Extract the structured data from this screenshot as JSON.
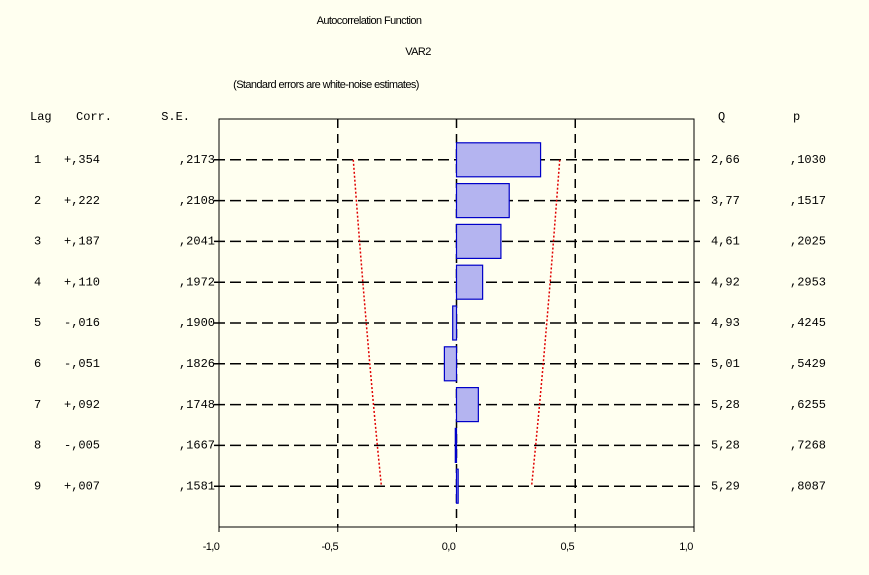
{
  "chart_data": {
    "type": "bar",
    "title": "Autocorrelation Function",
    "subtitle": "VAR2",
    "note": "(Standard errors are white-noise estimates)",
    "columns": {
      "lag": "Lag",
      "corr": "Corr.",
      "se": "S.E.",
      "q": "Q",
      "p": "p"
    },
    "categories": [
      "1",
      "2",
      "3",
      "4",
      "5",
      "6",
      "7",
      "8",
      "9"
    ],
    "values": [
      0.354,
      0.222,
      0.187,
      0.11,
      -0.016,
      -0.051,
      0.092,
      -0.005,
      0.007
    ],
    "value_labels": [
      "+,354",
      "+,222",
      "+,187",
      "+,110",
      "-,016",
      "-,051",
      "+,092",
      "-,005",
      "+,007"
    ],
    "se": [
      0.2173,
      0.2108,
      0.2041,
      0.1972,
      0.19,
      0.1826,
      0.1748,
      0.1667,
      0.1581
    ],
    "se_labels": [
      ",2173",
      ",2108",
      ",2041",
      ",1972",
      ",1900",
      ",1826",
      ",1748",
      ",1667",
      ",1581"
    ],
    "q_labels": [
      "2,66",
      "3,77",
      "4,61",
      "4,92",
      "4,93",
      "5,01",
      "5,28",
      "5,28",
      "5,29"
    ],
    "p_labels": [
      ",1030",
      ",1517",
      ",2025",
      ",2953",
      ",4245",
      ",5429",
      ",6255",
      ",7268",
      ",8087"
    ],
    "color": "#b4b4f0",
    "edge_color": "#0000c8",
    "limit_color": "#e00000",
    "xlim": [
      -1,
      1
    ],
    "xticks": [
      {
        "value": -1,
        "label": "-1,0"
      },
      {
        "value": -0.5,
        "label": "-0,5"
      },
      {
        "value": 0,
        "label": "0,0"
      },
      {
        "value": 0.5,
        "label": "0,5"
      },
      {
        "value": 1,
        "label": "1,0"
      }
    ],
    "grid": true
  }
}
